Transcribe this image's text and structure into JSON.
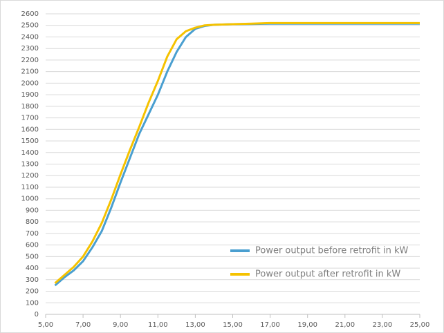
{
  "chart_data": {
    "type": "line",
    "x": [
      5.5,
      6,
      6.5,
      7,
      7.5,
      8,
      8.5,
      9,
      9.5,
      10,
      10.5,
      11,
      11.5,
      12,
      12.5,
      13,
      13.5,
      14,
      15,
      16,
      17,
      18,
      19,
      20,
      21,
      22,
      23,
      24,
      25
    ],
    "series": [
      {
        "name": "Power output before retrofit in kW",
        "color": "#4a9fd0",
        "values": [
          250,
          320,
          380,
          460,
          580,
          720,
          920,
          1140,
          1350,
          1560,
          1730,
          1900,
          2100,
          2270,
          2400,
          2470,
          2495,
          2505,
          2510,
          2512,
          2515,
          2515,
          2515,
          2515,
          2515,
          2515,
          2515,
          2515,
          2515
        ]
      },
      {
        "name": "Power output after retrofit in kW",
        "color": "#f5c200",
        "values": [
          270,
          340,
          410,
          500,
          630,
          790,
          990,
          1210,
          1420,
          1620,
          1830,
          2020,
          2230,
          2380,
          2450,
          2480,
          2500,
          2505,
          2510,
          2515,
          2520,
          2520,
          2520,
          2520,
          2520,
          2520,
          2520,
          2520,
          2520
        ]
      }
    ],
    "xlim": [
      5,
      25
    ],
    "xticks": [
      {
        "value": 5,
        "label": "5,00"
      },
      {
        "value": 7,
        "label": "7,00"
      },
      {
        "value": 9,
        "label": "9,00"
      },
      {
        "value": 11,
        "label": "11,00"
      },
      {
        "value": 13,
        "label": "13,00"
      },
      {
        "value": 15,
        "label": "15,00"
      },
      {
        "value": 17,
        "label": "17,00"
      },
      {
        "value": 19,
        "label": "19,00"
      },
      {
        "value": 21,
        "label": "21,00"
      },
      {
        "value": 23,
        "label": "23,00"
      },
      {
        "value": 25,
        "label": "25,00"
      }
    ],
    "ylim": [
      0,
      2600
    ],
    "yticks": [
      0,
      100,
      200,
      300,
      400,
      500,
      600,
      700,
      800,
      900,
      1000,
      1100,
      1200,
      1300,
      1400,
      1500,
      1600,
      1700,
      1800,
      1900,
      2000,
      2100,
      2200,
      2300,
      2400,
      2500,
      2600
    ],
    "grid": true,
    "legend": "lower right"
  }
}
